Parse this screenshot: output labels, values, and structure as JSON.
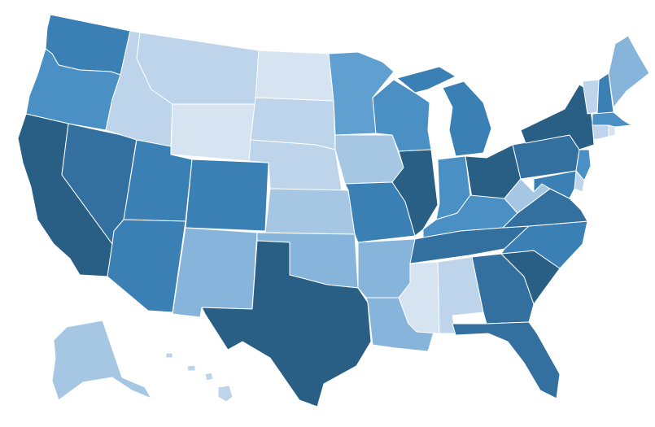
{
  "map": {
    "type": "choropleth",
    "region": "United States",
    "palette": {
      "level1": "#d6e4f1",
      "level2": "#bdd4ea",
      "level3": "#a5c7e3",
      "level4": "#86b4da",
      "level5": "#5fa0d0",
      "level6": "#4a90c4",
      "level7": "#3a80b5",
      "level8": "#336f9f",
      "level9": "#2a5f85",
      "border": "#ffffff"
    },
    "states": [
      {
        "id": "WA",
        "level": 7
      },
      {
        "id": "OR",
        "level": 6
      },
      {
        "id": "CA",
        "level": 9
      },
      {
        "id": "NV",
        "level": 8
      },
      {
        "id": "ID",
        "level": 2
      },
      {
        "id": "MT",
        "level": 2
      },
      {
        "id": "WY",
        "level": 1
      },
      {
        "id": "UT",
        "level": 7
      },
      {
        "id": "AZ",
        "level": 7
      },
      {
        "id": "CO",
        "level": 7
      },
      {
        "id": "NM",
        "level": 4
      },
      {
        "id": "ND",
        "level": 1
      },
      {
        "id": "SD",
        "level": 2
      },
      {
        "id": "NE",
        "level": 2
      },
      {
        "id": "KS",
        "level": 3
      },
      {
        "id": "OK",
        "level": 4
      },
      {
        "id": "TX",
        "level": 9
      },
      {
        "id": "MN",
        "level": 5
      },
      {
        "id": "IA",
        "level": 3
      },
      {
        "id": "MO",
        "level": 7
      },
      {
        "id": "AR",
        "level": 4
      },
      {
        "id": "LA",
        "level": 4
      },
      {
        "id": "WI",
        "level": 6
      },
      {
        "id": "IL",
        "level": 9
      },
      {
        "id": "MI",
        "level": 7
      },
      {
        "id": "IN",
        "level": 6
      },
      {
        "id": "OH",
        "level": 9
      },
      {
        "id": "KY",
        "level": 6
      },
      {
        "id": "TN",
        "level": 8
      },
      {
        "id": "MS",
        "level": 1
      },
      {
        "id": "AL",
        "level": 2
      },
      {
        "id": "GA",
        "level": 8
      },
      {
        "id": "FL",
        "level": 8
      },
      {
        "id": "SC",
        "level": 9
      },
      {
        "id": "NC",
        "level": 7
      },
      {
        "id": "VA",
        "level": 8
      },
      {
        "id": "WV",
        "level": 3
      },
      {
        "id": "PA",
        "level": 8
      },
      {
        "id": "NY",
        "level": 9
      },
      {
        "id": "VT",
        "level": 2
      },
      {
        "id": "NH",
        "level": 7
      },
      {
        "id": "ME",
        "level": 4
      },
      {
        "id": "MA",
        "level": 6
      },
      {
        "id": "CT",
        "level": 2
      },
      {
        "id": "RI",
        "level": 1
      },
      {
        "id": "NJ",
        "level": 6
      },
      {
        "id": "DE",
        "level": 2
      },
      {
        "id": "MD",
        "level": 7
      },
      {
        "id": "AK",
        "level": 3
      },
      {
        "id": "HI",
        "level": 2
      }
    ]
  }
}
